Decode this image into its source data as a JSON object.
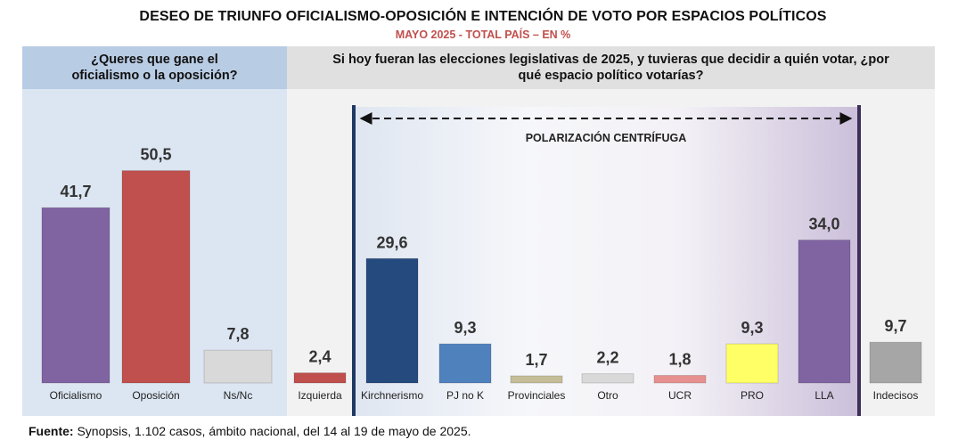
{
  "title": "DESEO DE TRIUNFO OFICIALISMO-OPOSICIÓN E INTENCIÓN DE VOTO POR ESPACIOS POLÍTICOS",
  "subtitle": "MAYO 2025 - TOTAL PAÍS – EN %",
  "left_question": "¿Queres que gane el oficialismo o la oposición?",
  "right_question": "Si hoy fueran las elecciones legislativas de 2025, y tuvieras que decidir a quién votar, ¿por qué espacio político votarías?",
  "polarization_label": "POLARIZACIÓN CENTRÍFUGA",
  "footer": {
    "label": "Fuente:",
    "text": " Synopsis, 1.102 casos, ámbito nacional, del 14 al 19 de mayo de 2025."
  },
  "chart_data": [
    {
      "type": "bar",
      "title": "¿Queres que gane el oficialismo o la oposición?",
      "categories": [
        "Oficialismo",
        "Oposición",
        "Ns/Nc"
      ],
      "values": [
        41.7,
        50.5,
        7.8
      ],
      "value_labels": [
        "41,7",
        "50,5",
        "7,8"
      ],
      "colors": [
        "#8064a2",
        "#c0504d",
        "#d9d9d9"
      ],
      "ylim": [
        0,
        60
      ],
      "grid": false
    },
    {
      "type": "bar",
      "title": "Si hoy fueran las elecciones legislativas de 2025, y tuvieras que decidir a quién votar, ¿por qué espacio político votarías?",
      "categories": [
        "Izquierda",
        "Kirchnerismo",
        "PJ no K",
        "Provinciales",
        "Otro",
        "UCR",
        "PRO",
        "LLA",
        "Indecisos"
      ],
      "values": [
        2.4,
        29.6,
        9.3,
        1.7,
        2.2,
        1.8,
        9.3,
        34.0,
        9.7
      ],
      "value_labels": [
        "2,4",
        "29,6",
        "9,3",
        "1,7",
        "2,2",
        "1,8",
        "9,3",
        "34,0",
        "9,7"
      ],
      "colors": [
        "#c0504d",
        "#254a7e",
        "#4f81bd",
        "#c4bd97",
        "#d9d9d9",
        "#e6908f",
        "#ffff66",
        "#8064a2",
        "#a6a6a6"
      ],
      "ylim": [
        0,
        60
      ],
      "grid": false
    }
  ]
}
